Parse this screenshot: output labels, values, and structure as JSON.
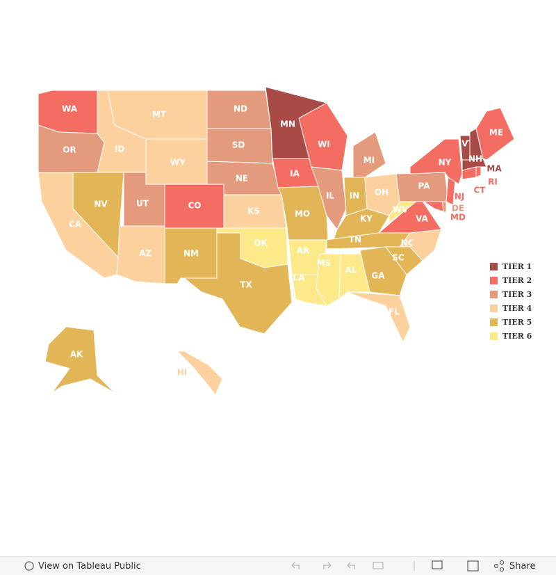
{
  "map": {
    "legend": [
      {
        "label": "TIER 1",
        "color": "#a84a45"
      },
      {
        "label": "TIER 2",
        "color": "#f46d62"
      },
      {
        "label": "TIER 3",
        "color": "#e49a7c"
      },
      {
        "label": "TIER 4",
        "color": "#fdd19d"
      },
      {
        "label": "TIER 5",
        "color": "#e2b656"
      },
      {
        "label": "TIER 6",
        "color": "#fbe98a"
      }
    ],
    "states": [
      {
        "label": "WA",
        "tier": "TIER 2"
      },
      {
        "label": "OR",
        "tier": "TIER 3"
      },
      {
        "label": "CA",
        "tier": "TIER 4"
      },
      {
        "label": "NV",
        "tier": "TIER 5"
      },
      {
        "label": "ID",
        "tier": "TIER 4"
      },
      {
        "label": "MT",
        "tier": "TIER 4"
      },
      {
        "label": "WY",
        "tier": "TIER 4"
      },
      {
        "label": "UT",
        "tier": "TIER 3"
      },
      {
        "label": "AZ",
        "tier": "TIER 4"
      },
      {
        "label": "CO",
        "tier": "TIER 2"
      },
      {
        "label": "NM",
        "tier": "TIER 5"
      },
      {
        "label": "ND",
        "tier": "TIER 3"
      },
      {
        "label": "SD",
        "tier": "TIER 3"
      },
      {
        "label": "NE",
        "tier": "TIER 3"
      },
      {
        "label": "KS",
        "tier": "TIER 4"
      },
      {
        "label": "OK",
        "tier": "TIER 6"
      },
      {
        "label": "TX",
        "tier": "TIER 5"
      },
      {
        "label": "MN",
        "tier": "TIER 1"
      },
      {
        "label": "IA",
        "tier": "TIER 2"
      },
      {
        "label": "MO",
        "tier": "TIER 5"
      },
      {
        "label": "AR",
        "tier": "TIER 6"
      },
      {
        "label": "LA",
        "tier": "TIER 6"
      },
      {
        "label": "WI",
        "tier": "TIER 2"
      },
      {
        "label": "IL",
        "tier": "TIER 3"
      },
      {
        "label": "MS",
        "tier": "TIER 6"
      },
      {
        "label": "AL",
        "tier": "TIER 6"
      },
      {
        "label": "MI",
        "tier": "TIER 3"
      },
      {
        "label": "IN",
        "tier": "TIER 5"
      },
      {
        "label": "OH",
        "tier": "TIER 4"
      },
      {
        "label": "KY",
        "tier": "TIER 5"
      },
      {
        "label": "TN",
        "tier": "TIER 5"
      },
      {
        "label": "GA",
        "tier": "TIER 5"
      },
      {
        "label": "FL",
        "tier": "TIER 4"
      },
      {
        "label": "SC",
        "tier": "TIER 5"
      },
      {
        "label": "NC",
        "tier": "TIER 4"
      },
      {
        "label": "VA",
        "tier": "TIER 2"
      },
      {
        "label": "WV",
        "tier": "TIER 6"
      },
      {
        "label": "MD",
        "tier": "TIER 2"
      },
      {
        "label": "DE",
        "tier": "TIER 3"
      },
      {
        "label": "PA",
        "tier": "TIER 3"
      },
      {
        "label": "NJ",
        "tier": "TIER 2"
      },
      {
        "label": "NY",
        "tier": "TIER 2"
      },
      {
        "label": "CT",
        "tier": "TIER 2"
      },
      {
        "label": "RI",
        "tier": "TIER 2"
      },
      {
        "label": "MA",
        "tier": "TIER 1"
      },
      {
        "label": "VT",
        "tier": "TIER 1"
      },
      {
        "label": "NH",
        "tier": "TIER 1"
      },
      {
        "label": "ME",
        "tier": "TIER 2"
      },
      {
        "label": "AK",
        "tier": "TIER 5"
      },
      {
        "label": "HI",
        "tier": "TIER 4"
      }
    ]
  },
  "toolbar": {
    "view": "View on Tableau Public",
    "share": "Share"
  }
}
